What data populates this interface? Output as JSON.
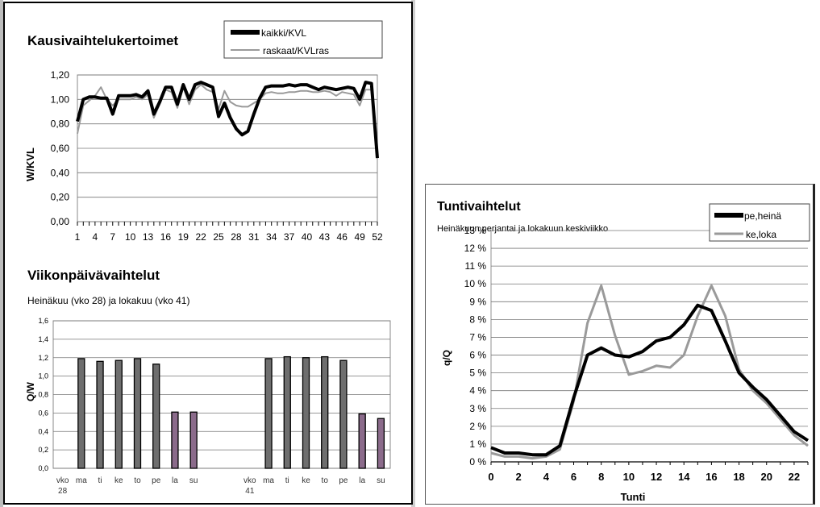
{
  "chart_data": [
    {
      "type": "line",
      "title": "Kausivaihtelukertoimet",
      "ylabel": "W/KVL",
      "xlabel": "",
      "ylim": [
        0,
        1.2
      ],
      "yticks": [
        "0,00",
        "0,20",
        "0,40",
        "0,60",
        "0,80",
        "1,00",
        "1,20"
      ],
      "xticks": [
        "1",
        "4",
        "7",
        "10",
        "13",
        "16",
        "19",
        "22",
        "25",
        "28",
        "31",
        "34",
        "37",
        "40",
        "43",
        "46",
        "49",
        "52"
      ],
      "grid": true,
      "legend_placement": "top-right",
      "x": [
        1,
        2,
        3,
        4,
        5,
        6,
        7,
        8,
        9,
        10,
        11,
        12,
        13,
        14,
        15,
        16,
        17,
        18,
        19,
        20,
        21,
        22,
        23,
        24,
        25,
        26,
        27,
        28,
        29,
        30,
        31,
        32,
        33,
        34,
        35,
        36,
        37,
        38,
        39,
        40,
        41,
        42,
        43,
        44,
        45,
        46,
        47,
        48,
        49,
        50,
        51,
        52
      ],
      "series": [
        {
          "name": "kaikki/KVL",
          "color": "#000000",
          "values": [
            0.82,
            1.0,
            1.02,
            1.02,
            1.01,
            1.01,
            0.88,
            1.03,
            1.03,
            1.03,
            1.04,
            1.02,
            1.07,
            0.88,
            0.98,
            1.1,
            1.1,
            0.96,
            1.12,
            1.0,
            1.12,
            1.14,
            1.12,
            1.1,
            0.86,
            0.97,
            0.85,
            0.76,
            0.71,
            0.74,
            0.88,
            1.01,
            1.1,
            1.11,
            1.11,
            1.11,
            1.12,
            1.11,
            1.12,
            1.12,
            1.1,
            1.08,
            1.1,
            1.09,
            1.08,
            1.09,
            1.1,
            1.09,
            1.0,
            1.14,
            1.13,
            0.52
          ]
        },
        {
          "name": "raskaat/KVLras",
          "color": "#9a9a9a",
          "values": [
            0.72,
            0.95,
            0.99,
            1.03,
            1.1,
            1.0,
            0.95,
            1.0,
            1.0,
            1.0,
            1.02,
            1.0,
            1.04,
            0.85,
            0.96,
            1.08,
            1.06,
            0.93,
            1.1,
            0.96,
            1.08,
            1.12,
            1.08,
            1.06,
            0.92,
            1.07,
            0.98,
            0.95,
            0.94,
            0.94,
            0.97,
            1.0,
            1.05,
            1.06,
            1.05,
            1.05,
            1.06,
            1.06,
            1.07,
            1.07,
            1.06,
            1.06,
            1.07,
            1.06,
            1.03,
            1.06,
            1.05,
            1.04,
            0.95,
            1.08,
            1.08,
            0.55
          ]
        }
      ]
    },
    {
      "type": "bar",
      "title": "Viikonpäivävaihtelut",
      "subtitle": "Heinäkuu (vko 28) ja lokakuu (vko 41)",
      "ylabel": "Q/W",
      "ylim": [
        0,
        1.6
      ],
      "yticks": [
        "0,0",
        "0,2",
        "0,4",
        "0,6",
        "0,8",
        "1,0",
        "1,2",
        "1,4",
        "1,6"
      ],
      "categories": [
        "vko 28",
        "ma",
        "ti",
        "ke",
        "to",
        "pe",
        "la",
        "su",
        "",
        "",
        "vko 41",
        "ma",
        "ti",
        "ke",
        "to",
        "pe",
        "la",
        "su"
      ],
      "values": [
        null,
        1.19,
        1.16,
        1.17,
        1.19,
        1.13,
        0.61,
        0.61,
        null,
        null,
        null,
        1.19,
        1.21,
        1.2,
        1.21,
        1.17,
        0.59,
        0.54
      ],
      "colors": [
        "#000000",
        "#6e6e6e",
        "#6e6e6e",
        "#6e6e6e",
        "#6e6e6e",
        "#6e6e6e",
        "#8b6b8b",
        "#8b6b8b",
        "#000000",
        "#000000",
        "#000000",
        "#6e6e6e",
        "#6e6e6e",
        "#6e6e6e",
        "#6e6e6e",
        "#6e6e6e",
        "#8b6b8b",
        "#8b6b8b"
      ],
      "grid": true
    },
    {
      "type": "line",
      "title": "Tuntivaihtelut",
      "subtitle": "Heinäkuun perjantai ja lokakuun keskiviikko",
      "ylabel": "q/Q",
      "xlabel": "Tunti",
      "ylim": [
        0,
        13
      ],
      "yticks": [
        "0 %",
        "1 %",
        "2 %",
        "3 %",
        "4 %",
        "5 %",
        "6 %",
        "7 %",
        "8 %",
        "9 %",
        "10 %",
        "11 %",
        "12 %",
        "13 %"
      ],
      "xticks": [
        "0",
        "2",
        "4",
        "6",
        "8",
        "10",
        "12",
        "14",
        "16",
        "18",
        "20",
        "22"
      ],
      "grid": true,
      "legend_placement": "top-right",
      "x": [
        0,
        1,
        2,
        3,
        4,
        5,
        6,
        7,
        8,
        9,
        10,
        11,
        12,
        13,
        14,
        15,
        16,
        17,
        18,
        19,
        20,
        21,
        22,
        23
      ],
      "series": [
        {
          "name": "pe,heinä",
          "color": "#000000",
          "values": [
            0.8,
            0.5,
            0.5,
            0.4,
            0.4,
            0.9,
            3.6,
            6.0,
            6.4,
            6.0,
            5.9,
            6.2,
            6.8,
            7.0,
            7.7,
            8.8,
            8.5,
            6.8,
            5.0,
            4.2,
            3.5,
            2.6,
            1.7,
            1.2
          ]
        },
        {
          "name": "ke,loka",
          "color": "#9a9a9a",
          "values": [
            0.5,
            0.3,
            0.3,
            0.2,
            0.3,
            0.7,
            3.4,
            7.8,
            9.9,
            7.1,
            4.9,
            5.1,
            5.4,
            5.3,
            6.0,
            8.2,
            9.9,
            8.2,
            5.2,
            4.0,
            3.3,
            2.4,
            1.5,
            0.9
          ]
        }
      ]
    }
  ]
}
